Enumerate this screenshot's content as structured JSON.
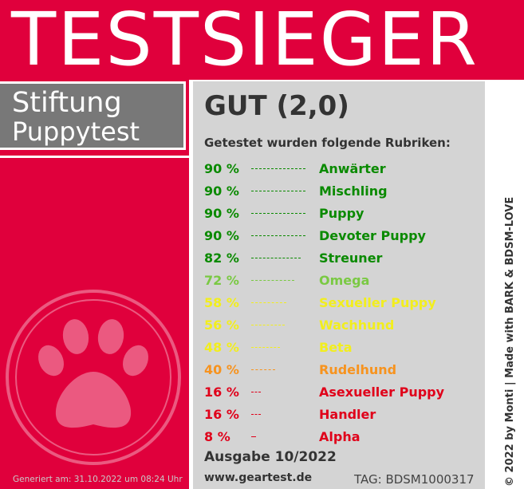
{
  "header": {
    "title": "TESTSIEGER"
  },
  "brand": {
    "line1": "Stiftung",
    "line2": "Puppytest"
  },
  "footer_left": {
    "generated": "Generiert am: 31.10.2022 um 08:24 Uhr"
  },
  "panel": {
    "grade": "GUT (2,0)",
    "subtitle": "Getestet wurden folgende Rubriken:",
    "rows": [
      {
        "pct": "90 %",
        "label": "Anwärter",
        "value": 90,
        "color": "#0a8a00"
      },
      {
        "pct": "90 %",
        "label": "Mischling",
        "value": 90,
        "color": "#0a8a00"
      },
      {
        "pct": "90 %",
        "label": "Puppy",
        "value": 90,
        "color": "#0a8a00"
      },
      {
        "pct": "90 %",
        "label": "Devoter Puppy",
        "value": 90,
        "color": "#0a8a00"
      },
      {
        "pct": "82 %",
        "label": "Streuner",
        "value": 82,
        "color": "#0a8a00"
      },
      {
        "pct": "72 %",
        "label": "Omega",
        "value": 72,
        "color": "#7ac943"
      },
      {
        "pct": "58 %",
        "label": "Sexueller Puppy",
        "value": 58,
        "color": "#f2ee1d"
      },
      {
        "pct": "56 %",
        "label": "Wachhund",
        "value": 56,
        "color": "#f2ee1d"
      },
      {
        "pct": "48 %",
        "label": "Beta",
        "value": 48,
        "color": "#f2ee1d"
      },
      {
        "pct": "40 %",
        "label": "Rudelhund",
        "value": 40,
        "color": "#f7931e"
      },
      {
        "pct": "16 %",
        "label": "Asexueller Puppy",
        "value": 16,
        "color": "#e0001a"
      },
      {
        "pct": "16 %",
        "label": "Handler",
        "value": 16,
        "color": "#e0001a"
      },
      {
        "pct": "8 %",
        "label": "Alpha",
        "value": 8,
        "color": "#e0001a"
      }
    ],
    "edition": "Ausgabe 10/2022",
    "website": "www.geartest.de",
    "tag": "TAG: BDSM1000317"
  },
  "side_credit": "© 2022 by Monti | Made with BARK & BDSM-LOVE",
  "icons": {
    "paw": "paw-print-icon"
  },
  "colors": {
    "brand_red": "#e0003c",
    "brand_gray": "#787878",
    "panel_gray": "#d4d4d4"
  }
}
